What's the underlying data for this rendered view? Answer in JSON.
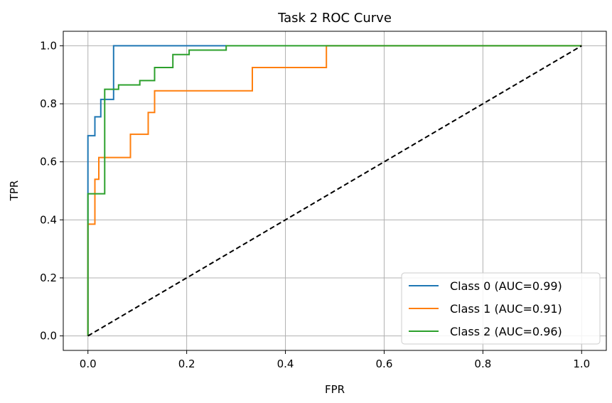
{
  "chart_data": {
    "type": "line",
    "title": "Task 2 ROC Curve",
    "xlabel": "FPR",
    "ylabel": "TPR",
    "xlim": [
      -0.05,
      1.05
    ],
    "ylim": [
      -0.05,
      1.05
    ],
    "xticks": [
      0.0,
      0.2,
      0.4,
      0.6,
      0.8,
      1.0
    ],
    "yticks": [
      0.0,
      0.2,
      0.4,
      0.6,
      0.8,
      1.0
    ],
    "xtick_labels": [
      "0.0",
      "0.2",
      "0.4",
      "0.6",
      "0.8",
      "1.0"
    ],
    "ytick_labels": [
      "0.0",
      "0.2",
      "0.4",
      "0.6",
      "0.8",
      "1.0"
    ],
    "grid": true,
    "legend_position": "lower right",
    "series": [
      {
        "name": "Class 0 (AUC=0.99)",
        "color": "#1f77b4",
        "x": [
          0,
          0,
          0,
          0.014,
          0.014,
          0.026,
          0.026,
          0.052,
          0.052,
          0.28
        ],
        "y": [
          0,
          0.49,
          0.69,
          0.69,
          0.755,
          0.755,
          0.815,
          0.815,
          1.0,
          1.0
        ]
      },
      {
        "name": "Class 1 (AUC=0.91)",
        "color": "#ff7f0e",
        "x": [
          0,
          0,
          0.0,
          0.014,
          0.014,
          0.022,
          0.022,
          0.086,
          0.086,
          0.122,
          0.122,
          0.135,
          0.135,
          0.333,
          0.333,
          0.483,
          0.483,
          1.0
        ],
        "y": [
          0,
          0.385,
          0.385,
          0.385,
          0.54,
          0.54,
          0.615,
          0.615,
          0.695,
          0.695,
          0.77,
          0.77,
          0.845,
          0.845,
          0.925,
          0.925,
          1.0,
          1.0
        ]
      },
      {
        "name": "Class 2 (AUC=0.96)",
        "color": "#2ca02c",
        "x": [
          0,
          0,
          0.034,
          0.034,
          0.034,
          0.062,
          0.062,
          0.105,
          0.105,
          0.135,
          0.135,
          0.172,
          0.172,
          0.205,
          0.205,
          0.28,
          0.28,
          1.0
        ],
        "y": [
          0,
          0.49,
          0.49,
          0.85,
          0.85,
          0.85,
          0.865,
          0.865,
          0.88,
          0.88,
          0.925,
          0.925,
          0.97,
          0.97,
          0.985,
          0.985,
          1.0,
          1.0
        ]
      },
      {
        "color": "#000000",
        "dashed": true,
        "x": [
          0,
          1
        ],
        "y": [
          0,
          1
        ]
      }
    ]
  }
}
